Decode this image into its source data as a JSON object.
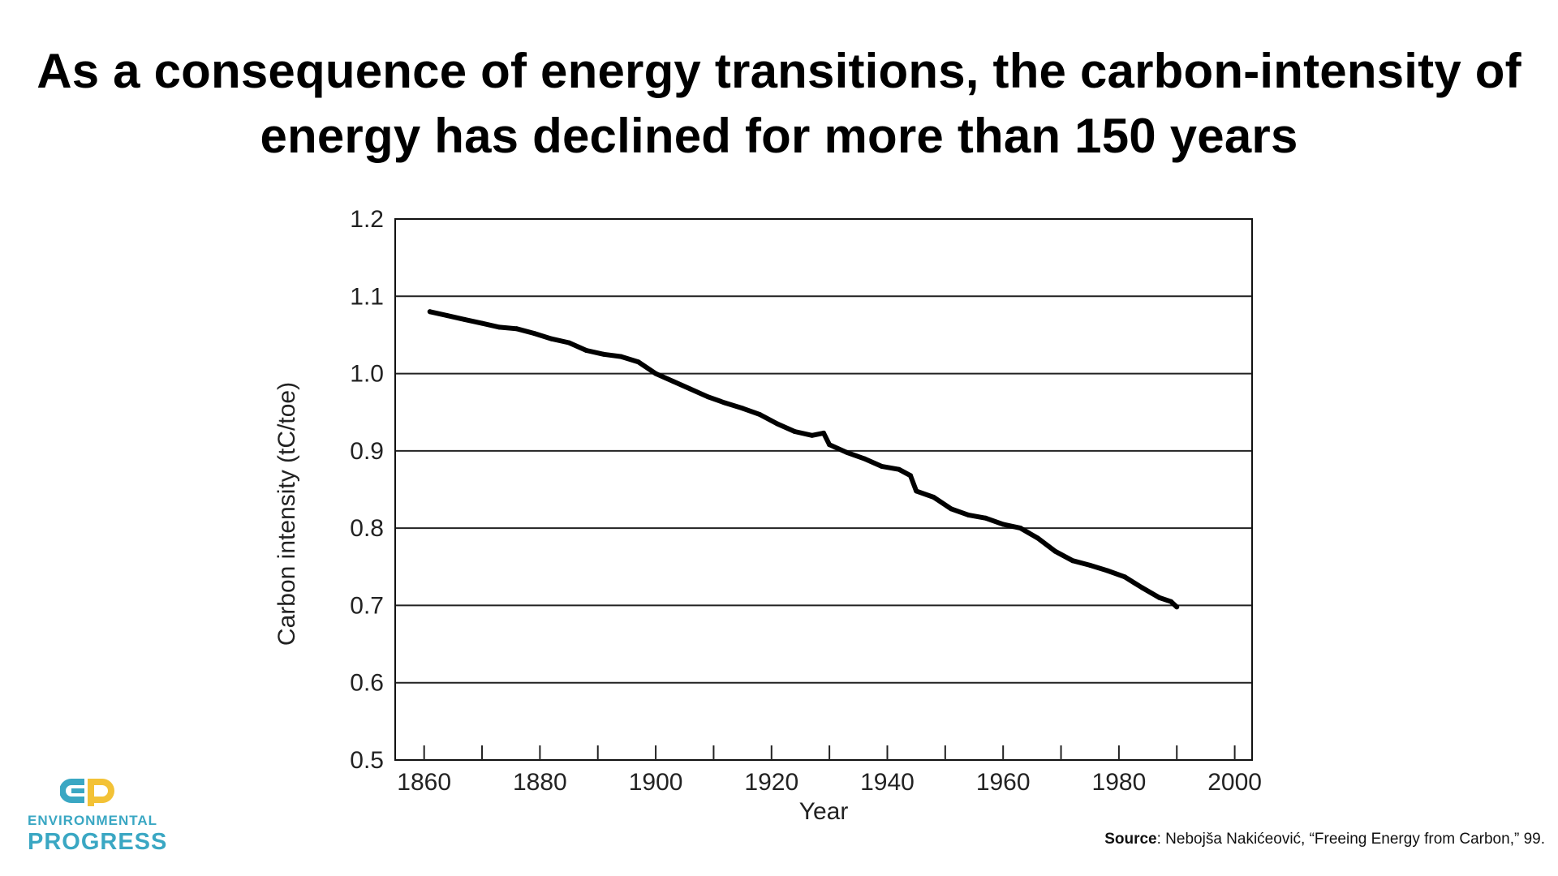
{
  "title": {
    "line1": "As a consequence of energy transitions, the carbon-intensity of",
    "line2": "energy has declined for more than 150 years"
  },
  "chart_data": {
    "type": "line",
    "xlabel": "Year",
    "ylabel": "Carbon intensity (tC/toe)",
    "xlim": [
      1855,
      2003
    ],
    "ylim": [
      0.5,
      1.2
    ],
    "x_ticks": [
      1860,
      1880,
      1900,
      1920,
      1940,
      1960,
      1980,
      2000
    ],
    "x_minor_ticks": [
      1860,
      1870,
      1880,
      1890,
      1900,
      1910,
      1920,
      1930,
      1940,
      1950,
      1960,
      1970,
      1980,
      1990,
      2000
    ],
    "y_ticks": [
      0.5,
      0.6,
      0.7,
      0.8,
      0.9,
      1.0,
      1.1,
      1.2
    ],
    "y_tick_labels": [
      "0.5",
      "0.6",
      "0.7",
      "0.8",
      "0.9",
      "1.0",
      "1.1",
      "1.2"
    ],
    "grid": "horizontal",
    "line_color": "#000000",
    "series": [
      {
        "x": [
          1861,
          1864,
          1867,
          1870,
          1873,
          1876,
          1879,
          1882,
          1885,
          1888,
          1891,
          1894,
          1897,
          1900,
          1903,
          1906,
          1909,
          1912,
          1915,
          1918,
          1921,
          1924,
          1927,
          1929,
          1930,
          1933,
          1936,
          1939,
          1942,
          1944,
          1945,
          1948,
          1951,
          1954,
          1957,
          1960,
          1963,
          1966,
          1969,
          1972,
          1975,
          1978,
          1981,
          1984,
          1987,
          1989,
          1990
        ],
        "y": [
          1.08,
          1.075,
          1.07,
          1.065,
          1.06,
          1.058,
          1.052,
          1.045,
          1.04,
          1.03,
          1.025,
          1.022,
          1.015,
          1.0,
          0.99,
          0.98,
          0.97,
          0.962,
          0.955,
          0.947,
          0.935,
          0.925,
          0.92,
          0.923,
          0.908,
          0.898,
          0.89,
          0.88,
          0.876,
          0.868,
          0.848,
          0.84,
          0.825,
          0.817,
          0.813,
          0.805,
          0.8,
          0.787,
          0.77,
          0.758,
          0.752,
          0.745,
          0.737,
          0.723,
          0.71,
          0.705,
          0.698
        ]
      }
    ]
  },
  "logo": {
    "line1": "ENVIRONMENTAL",
    "line2": "PROGRESS",
    "colors": {
      "blue": "#3aa7c3",
      "yellow": "#f3c236"
    }
  },
  "source": {
    "label": "Source",
    "text": ": Nebojša Nakićeović, “Freeing Energy from Carbon,” 99."
  }
}
